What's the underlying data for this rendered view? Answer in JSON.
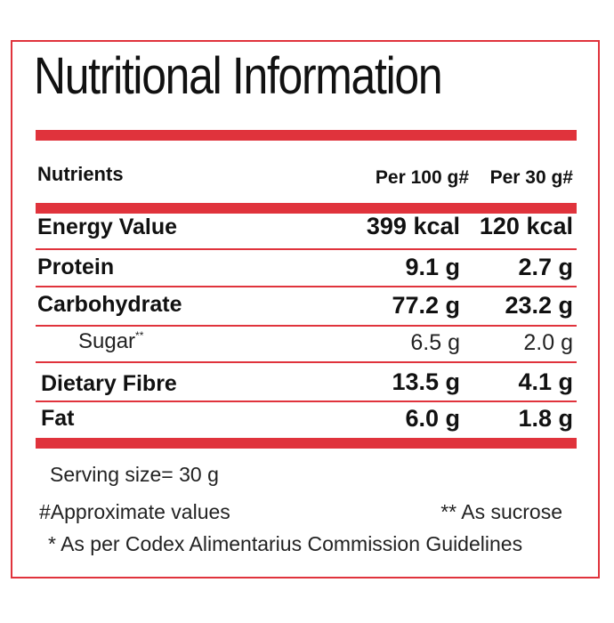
{
  "title": "Nutritional Information",
  "header": {
    "nutrients": "Nutrients",
    "per100": "Per 100 g#",
    "per30": "Per 30 g#"
  },
  "rows": [
    {
      "name": "Energy Value",
      "per100": "399 kcal",
      "per30": "120 kcal"
    },
    {
      "name": "Protein",
      "per100": "9.1 g",
      "per30": "2.7 g"
    },
    {
      "name": "Carbohydrate",
      "per100": "77.2 g",
      "per30": "23.2 g"
    },
    {
      "name": "Sugar",
      "sup": "**",
      "per100": "6.5 g",
      "per30": "2.0 g"
    },
    {
      "name": "Dietary Fibre",
      "per100": "13.5 g",
      "per30": "4.1 g"
    },
    {
      "name": "Fat",
      "per100": "6.0 g",
      "per30": "1.8 g"
    }
  ],
  "footer": {
    "serving": "Serving size= 30 g",
    "approx": "#Approximate values",
    "sucrose": "** As sucrose",
    "codex": "* As per Codex Alimentarius Commission Guidelines"
  },
  "colors": {
    "accent": "#e0333c",
    "text": "#111111"
  }
}
